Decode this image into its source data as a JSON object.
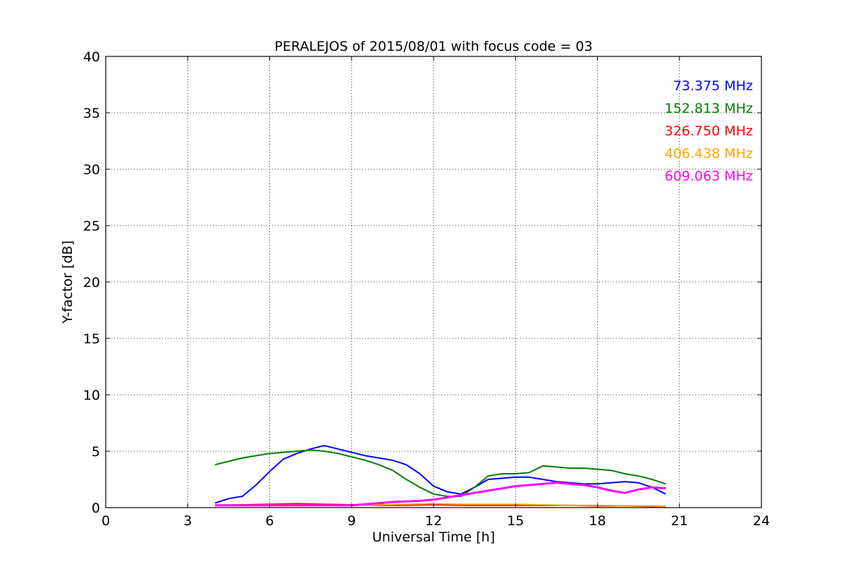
{
  "chart_data": {
    "type": "line",
    "title": "PERALEJOS of 2015/08/01 with focus code = 03",
    "xlabel": "Universal Time [h]",
    "ylabel": "Y-factor [dB]",
    "xlim": [
      0,
      24
    ],
    "ylim": [
      0,
      40
    ],
    "xticks": [
      0,
      3,
      6,
      9,
      12,
      15,
      18,
      21,
      24
    ],
    "yticks": [
      0,
      5,
      10,
      15,
      20,
      25,
      30,
      35,
      40
    ],
    "x_tick_labels": [
      "0",
      "3",
      "6",
      "9",
      "12",
      "15",
      "18",
      "21",
      "24"
    ],
    "y_tick_labels": [
      "0",
      "5",
      "10",
      "15",
      "20",
      "25",
      "30",
      "35",
      "40"
    ],
    "grid": true,
    "legend_position": "top-right",
    "series": [
      {
        "name": "73.375 MHz",
        "color": "#0000ff",
        "x": [
          4.0,
          4.5,
          5.0,
          5.5,
          6.0,
          6.5,
          7.0,
          7.5,
          8.0,
          8.5,
          9.0,
          9.5,
          10.0,
          10.5,
          11.0,
          11.5,
          12.0,
          12.5,
          13.0,
          13.5,
          14.0,
          14.5,
          15.0,
          15.5,
          16.0,
          16.5,
          17.0,
          17.5,
          18.0,
          18.5,
          19.0,
          19.5,
          20.0,
          20.5
        ],
        "values": [
          0.4,
          0.8,
          1.0,
          2.0,
          3.2,
          4.3,
          4.8,
          5.2,
          5.5,
          5.2,
          4.9,
          4.6,
          4.4,
          4.2,
          3.8,
          3.0,
          1.9,
          1.4,
          1.2,
          1.8,
          2.5,
          2.6,
          2.7,
          2.7,
          2.5,
          2.3,
          2.2,
          2.1,
          2.1,
          2.2,
          2.3,
          2.2,
          1.8,
          1.2
        ]
      },
      {
        "name": "152.813 MHz",
        "color": "#008000",
        "x": [
          4.0,
          4.5,
          5.0,
          5.5,
          6.0,
          6.5,
          7.0,
          7.5,
          8.0,
          8.5,
          9.0,
          9.5,
          10.0,
          10.5,
          11.0,
          11.5,
          12.0,
          12.5,
          13.0,
          13.5,
          14.0,
          14.5,
          15.0,
          15.5,
          16.0,
          16.5,
          17.0,
          17.5,
          18.0,
          18.5,
          19.0,
          19.5,
          20.0,
          20.5
        ],
        "values": [
          3.8,
          4.1,
          4.4,
          4.6,
          4.8,
          4.9,
          5.0,
          5.1,
          5.0,
          4.8,
          4.5,
          4.2,
          3.8,
          3.3,
          2.5,
          1.8,
          1.2,
          1.0,
          1.0,
          1.8,
          2.8,
          3.0,
          3.0,
          3.1,
          3.7,
          3.6,
          3.5,
          3.5,
          3.4,
          3.3,
          3.0,
          2.8,
          2.5,
          2.1
        ]
      },
      {
        "name": "326.750 MHz",
        "color": "#ff0000",
        "x": [
          4.0,
          5.0,
          6.0,
          7.0,
          8.0,
          9.0,
          10.0,
          11.0,
          12.0,
          13.0,
          14.0,
          15.0,
          16.0,
          17.0,
          18.0,
          19.0,
          20.0,
          20.5
        ],
        "values": [
          0.2,
          0.25,
          0.3,
          0.35,
          0.3,
          0.25,
          0.2,
          0.2,
          0.25,
          0.2,
          0.2,
          0.2,
          0.2,
          0.2,
          0.15,
          0.15,
          0.1,
          0.1
        ]
      },
      {
        "name": "406.438 MHz",
        "color": "#ffa500",
        "x": [
          4.0,
          5.0,
          6.0,
          7.0,
          8.0,
          9.0,
          10.0,
          11.0,
          12.0,
          13.0,
          14.0,
          15.0,
          16.0,
          17.0,
          18.0,
          19.0,
          20.0,
          20.5
        ],
        "values": [
          0.2,
          0.2,
          0.25,
          0.25,
          0.2,
          0.2,
          0.25,
          0.3,
          0.35,
          0.3,
          0.3,
          0.3,
          0.25,
          0.2,
          0.2,
          0.15,
          0.15,
          0.1
        ]
      },
      {
        "name": "609.063 MHz",
        "color": "#ff00ff",
        "x": [
          4.0,
          5.0,
          6.0,
          7.0,
          8.0,
          9.0,
          9.5,
          10.0,
          10.5,
          11.0,
          11.5,
          12.0,
          12.5,
          13.0,
          13.5,
          14.0,
          14.5,
          15.0,
          15.5,
          16.0,
          16.5,
          17.0,
          17.5,
          18.0,
          18.5,
          19.0,
          19.5,
          20.0,
          20.5
        ],
        "values": [
          0.2,
          0.2,
          0.2,
          0.2,
          0.2,
          0.2,
          0.3,
          0.4,
          0.5,
          0.55,
          0.6,
          0.7,
          0.9,
          1.1,
          1.3,
          1.5,
          1.7,
          1.9,
          2.0,
          2.1,
          2.2,
          2.1,
          2.0,
          1.8,
          1.5,
          1.3,
          1.6,
          1.8,
          1.7
        ]
      }
    ]
  }
}
